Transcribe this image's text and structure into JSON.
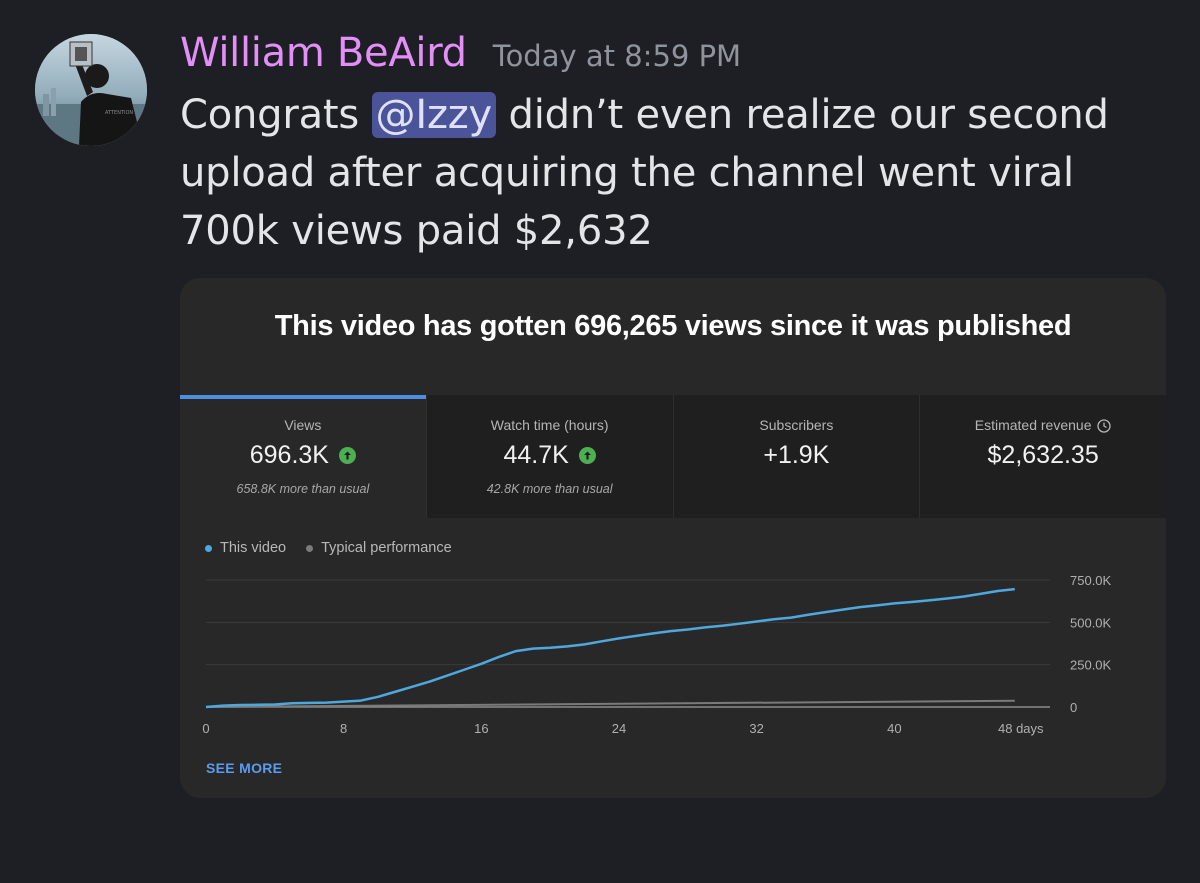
{
  "message": {
    "author": "William BeAird",
    "timestamp": "Today at 8:59 PM",
    "text_before": "Congrats ",
    "mention": "@Izzy",
    "text_after": " didn’t even realize our second upload after acquiring the channel went viral 700k views paid $2,632"
  },
  "card": {
    "title": "This video has gotten 696,265 views since it was published",
    "metrics": [
      {
        "label": "Views",
        "value": "696.3K",
        "sub": "658.8K more than usual",
        "trend_icon": "arrow-up-circle-icon"
      },
      {
        "label": "Watch time (hours)",
        "value": "44.7K",
        "sub": "42.8K more than usual",
        "trend_icon": "arrow-up-circle-icon"
      },
      {
        "label": "Subscribers",
        "value": "+1.9K"
      },
      {
        "label": "Estimated revenue",
        "value": "$2,632.35",
        "info_icon": "clock-icon"
      }
    ],
    "legend": [
      {
        "label": "This video",
        "color": "#4ea8de"
      },
      {
        "label": "Typical performance",
        "color": "#7a7a7a"
      }
    ],
    "see_more": "SEE MORE"
  },
  "colors": {
    "author": "#e48ff7",
    "mention_bg": "#4c5499",
    "accent": "#4c8fe0",
    "line": "#4ea8de",
    "up": "#4caf50"
  },
  "chart_data": {
    "type": "line",
    "x_tick_labels": [
      "0",
      "8",
      "16",
      "24",
      "32",
      "40",
      "48 days"
    ],
    "y_tick_labels": [
      "0",
      "250.0K",
      "500.0K",
      "750.0K"
    ],
    "xlim": [
      0,
      48
    ],
    "ylim": [
      0,
      750000
    ],
    "grid": true,
    "legend_position": "top-left",
    "series": [
      {
        "name": "This video",
        "color": "#4ea8de",
        "x": [
          0,
          1,
          2,
          3,
          4,
          5,
          6,
          7,
          8,
          9,
          10,
          11,
          12,
          13,
          14,
          15,
          16,
          17,
          18,
          19,
          20,
          21,
          22,
          23,
          24,
          25,
          26,
          27,
          28,
          29,
          30,
          31,
          32,
          33,
          34,
          35,
          36,
          37,
          38,
          39,
          40,
          41,
          42,
          43,
          44,
          45,
          46,
          47
        ],
        "y": [
          0,
          8000,
          12000,
          13000,
          15000,
          22000,
          24000,
          26000,
          32000,
          38000,
          60000,
          90000,
          120000,
          150000,
          185000,
          220000,
          255000,
          295000,
          330000,
          345000,
          350000,
          358000,
          370000,
          388000,
          405000,
          420000,
          435000,
          448000,
          458000,
          470000,
          480000,
          492000,
          505000,
          518000,
          528000,
          545000,
          560000,
          575000,
          590000,
          600000,
          612000,
          620000,
          630000,
          640000,
          652000,
          668000,
          685000,
          696000
        ]
      },
      {
        "name": "Typical performance",
        "color": "#7a7a7a",
        "x": [
          0,
          47
        ],
        "y": [
          0,
          37000
        ]
      }
    ]
  }
}
